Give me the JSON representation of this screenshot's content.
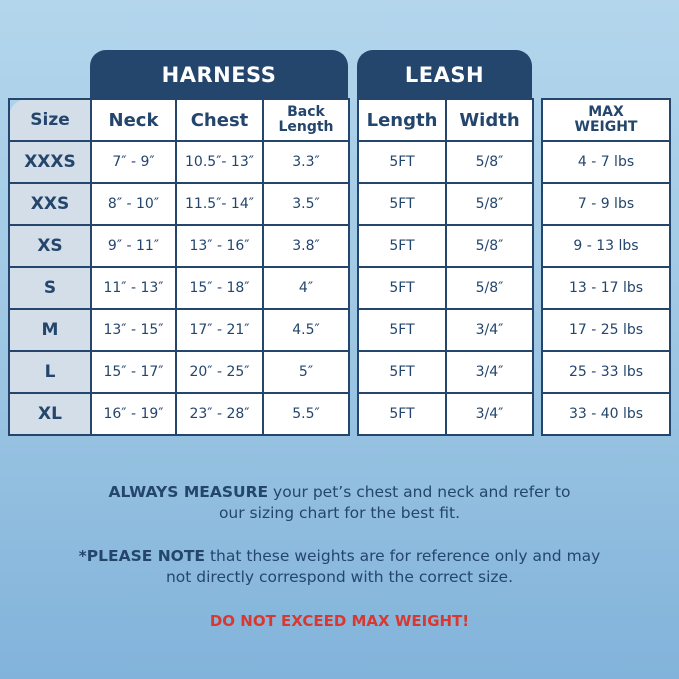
{
  "harness": {
    "title": "HARNESS",
    "headers": [
      "Size",
      "Neck",
      "Chest",
      "Back Length"
    ]
  },
  "leash": {
    "title": "LEASH",
    "headers": [
      "Length",
      "Width"
    ]
  },
  "max_weight": {
    "header": "MAX WEIGHT"
  },
  "rows": [
    {
      "size": "XXXS",
      "neck": "7″ - 9″",
      "chest": "10.5″- 13″",
      "back": "3.3″",
      "length": "5FT",
      "width": "5/8″",
      "weight": "4 - 7 lbs"
    },
    {
      "size": "XXS",
      "neck": "8″ - 10″",
      "chest": "11.5″- 14″",
      "back": "3.5″",
      "length": "5FT",
      "width": "5/8″",
      "weight": "7 - 9 lbs"
    },
    {
      "size": "XS",
      "neck": "9″ - 11″",
      "chest": "13″ - 16″",
      "back": "3.8″",
      "length": "5FT",
      "width": "5/8″",
      "weight": "9 - 13 lbs"
    },
    {
      "size": "S",
      "neck": "11″ - 13″",
      "chest": "15″ - 18″",
      "back": "4″",
      "length": "5FT",
      "width": "5/8″",
      "weight": "13 - 17 lbs"
    },
    {
      "size": "M",
      "neck": "13″ - 15″",
      "chest": "17″ - 21″",
      "back": "4.5″",
      "length": "5FT",
      "width": "3/4″",
      "weight": "17 - 25 lbs"
    },
    {
      "size": "L",
      "neck": "15″ - 17″",
      "chest": "20″ - 25″",
      "back": "5″",
      "length": "5FT",
      "width": "3/4″",
      "weight": "25 - 33 lbs"
    },
    {
      "size": "XL",
      "neck": "16″ - 19″",
      "chest": "23″ - 28″",
      "back": "5.5″",
      "length": "5FT",
      "width": "3/4″",
      "weight": "33 - 40 lbs"
    }
  ],
  "notes": {
    "measure_bold": "ALWAYS MEASURE",
    "measure_text": " your pet’s chest and neck and refer to our sizing chart for the best fit.",
    "note_bold": "*PLEASE NOTE",
    "note_text": " that these weights are for reference only and may not directly correspond with the correct size.",
    "warning": "DO NOT EXCEED MAX WEIGHT!"
  },
  "colors": {
    "navy": "#24466d",
    "warning": "#d8382f",
    "size_column": "#d4dee8"
  }
}
